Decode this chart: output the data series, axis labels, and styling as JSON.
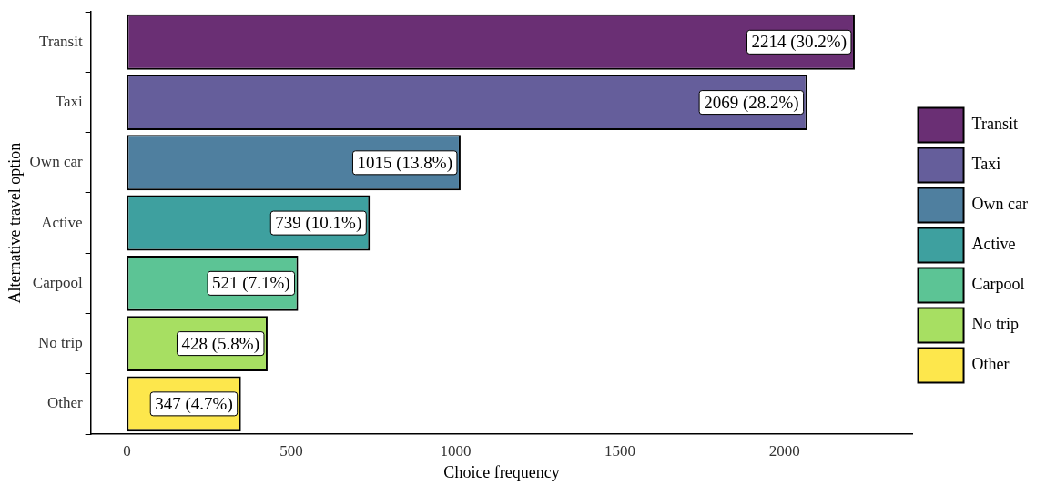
{
  "chart_data": {
    "type": "bar",
    "orientation": "horizontal",
    "stacked": true,
    "xlabel": "Choice frequency",
    "ylabel": "Alternative travel option",
    "categories": [
      "Transit",
      "Taxi",
      "Own car",
      "Active",
      "Carpool",
      "No trip",
      "Other"
    ],
    "series": [
      {
        "name": "Transit",
        "color": "#6a2f74",
        "values": [
          2214,
          null,
          null,
          null,
          null,
          null,
          null
        ],
        "value_labels": [
          "2214 (30.2%)",
          null,
          null,
          null,
          null,
          null,
          null
        ]
      },
      {
        "name": "Taxi",
        "color": "#655e9b",
        "values": [
          null,
          2069,
          null,
          null,
          null,
          null,
          null
        ],
        "value_labels": [
          null,
          "2069 (28.2%)",
          null,
          null,
          null,
          null,
          null
        ]
      },
      {
        "name": "Own car",
        "color": "#4f7f9f",
        "values": [
          null,
          null,
          1015,
          null,
          null,
          null,
          null
        ],
        "value_labels": [
          null,
          null,
          "1015 (13.8%)",
          null,
          null,
          null,
          null
        ]
      },
      {
        "name": "Active",
        "color": "#3ea09f",
        "values": [
          null,
          null,
          null,
          739,
          null,
          null,
          null
        ],
        "value_labels": [
          null,
          null,
          null,
          "739 (10.1%)",
          null,
          null,
          null
        ]
      },
      {
        "name": "Carpool",
        "color": "#5cc495",
        "values": [
          null,
          null,
          null,
          null,
          521,
          null,
          null
        ],
        "value_labels": [
          null,
          null,
          null,
          null,
          "521 (7.1%)",
          null,
          null
        ]
      },
      {
        "name": "No trip",
        "color": "#a7df62",
        "values": [
          null,
          null,
          null,
          null,
          null,
          428,
          null
        ],
        "value_labels": [
          null,
          null,
          null,
          null,
          null,
          "428 (5.8%)",
          null
        ]
      },
      {
        "name": "Other",
        "color": "#fde74c",
        "values": [
          null,
          null,
          null,
          null,
          null,
          null,
          347
        ],
        "value_labels": [
          null,
          null,
          null,
          null,
          null,
          null,
          "347 (4.7%)"
        ]
      }
    ],
    "xlim": [
      -110,
      2390
    ],
    "xticks": [
      0,
      500,
      1000,
      1500,
      2000
    ],
    "grid": false,
    "legend": "right"
  }
}
